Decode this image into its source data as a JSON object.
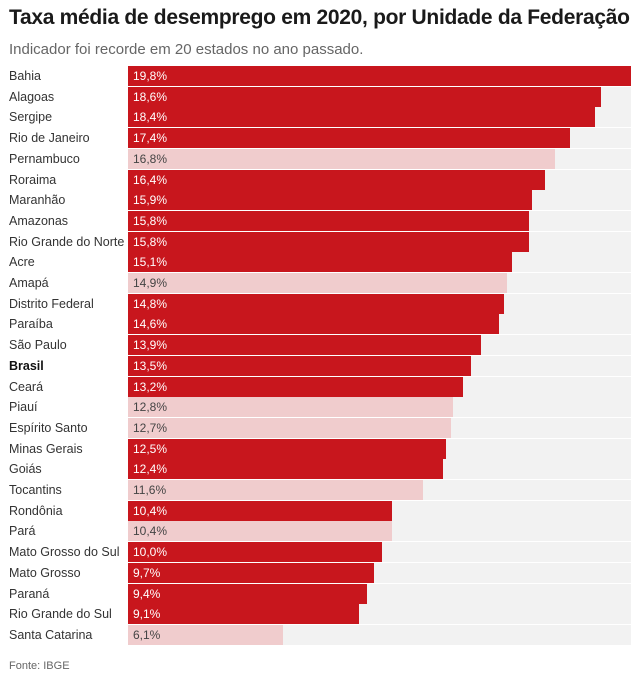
{
  "header": {
    "title": "Taxa média de desemprego em 2020, por Unidade da Federação",
    "subtitle": "Indicador foi recorde em 20 estados no ano passado."
  },
  "footer": {
    "source": "Fonte: IBGE"
  },
  "colors": {
    "record": "#c8161d",
    "not_record": "#f0cccd",
    "track": "#f2f2f2"
  },
  "chart_data": {
    "type": "bar",
    "orientation": "horizontal",
    "title": "Taxa média de desemprego em 2020, por Unidade da Federação",
    "subtitle": "Indicador foi recorde em 20 estados no ano passado.",
    "xlim": [
      0,
      19.8
    ],
    "grid": false,
    "legend": "none",
    "categories": [
      "Bahia",
      "Alagoas",
      "Sergipe",
      "Rio de Janeiro",
      "Pernambuco",
      "Roraima",
      "Maranhão",
      "Amazonas",
      "Rio Grande do Norte",
      "Acre",
      "Amapá",
      "Distrito Federal",
      "Paraíba",
      "São Paulo",
      "Brasil",
      "Ceará",
      "Piauí",
      "Espírito Santo",
      "Minas Gerais",
      "Goiás",
      "Tocantins",
      "Rondônia",
      "Pará",
      "Mato Grosso do Sul",
      "Mato Grosso",
      "Paraná",
      "Rio Grande do Sul",
      "Santa Catarina"
    ],
    "values": [
      19.8,
      18.6,
      18.4,
      17.4,
      16.8,
      16.4,
      15.9,
      15.8,
      15.8,
      15.1,
      14.9,
      14.8,
      14.6,
      13.9,
      13.5,
      13.2,
      12.8,
      12.7,
      12.5,
      12.4,
      11.6,
      10.4,
      10.4,
      10.0,
      9.7,
      9.4,
      9.1,
      6.1
    ],
    "value_labels": [
      "19,8%",
      "18,6%",
      "18,4%",
      "17,4%",
      "16,8%",
      "16,4%",
      "15,9%",
      "15,8%",
      "15,8%",
      "15,1%",
      "14,9%",
      "14,8%",
      "14,6%",
      "13,9%",
      "13,5%",
      "13,2%",
      "12,8%",
      "12,7%",
      "12,5%",
      "12,4%",
      "11,6%",
      "10,4%",
      "10,4%",
      "10,0%",
      "9,7%",
      "9,4%",
      "9,1%",
      "6,1%"
    ],
    "record": [
      true,
      true,
      true,
      true,
      false,
      true,
      true,
      true,
      true,
      true,
      false,
      true,
      true,
      true,
      true,
      true,
      false,
      false,
      true,
      true,
      false,
      true,
      false,
      true,
      true,
      true,
      true,
      false
    ],
    "highlighted": [
      "Brasil"
    ]
  }
}
